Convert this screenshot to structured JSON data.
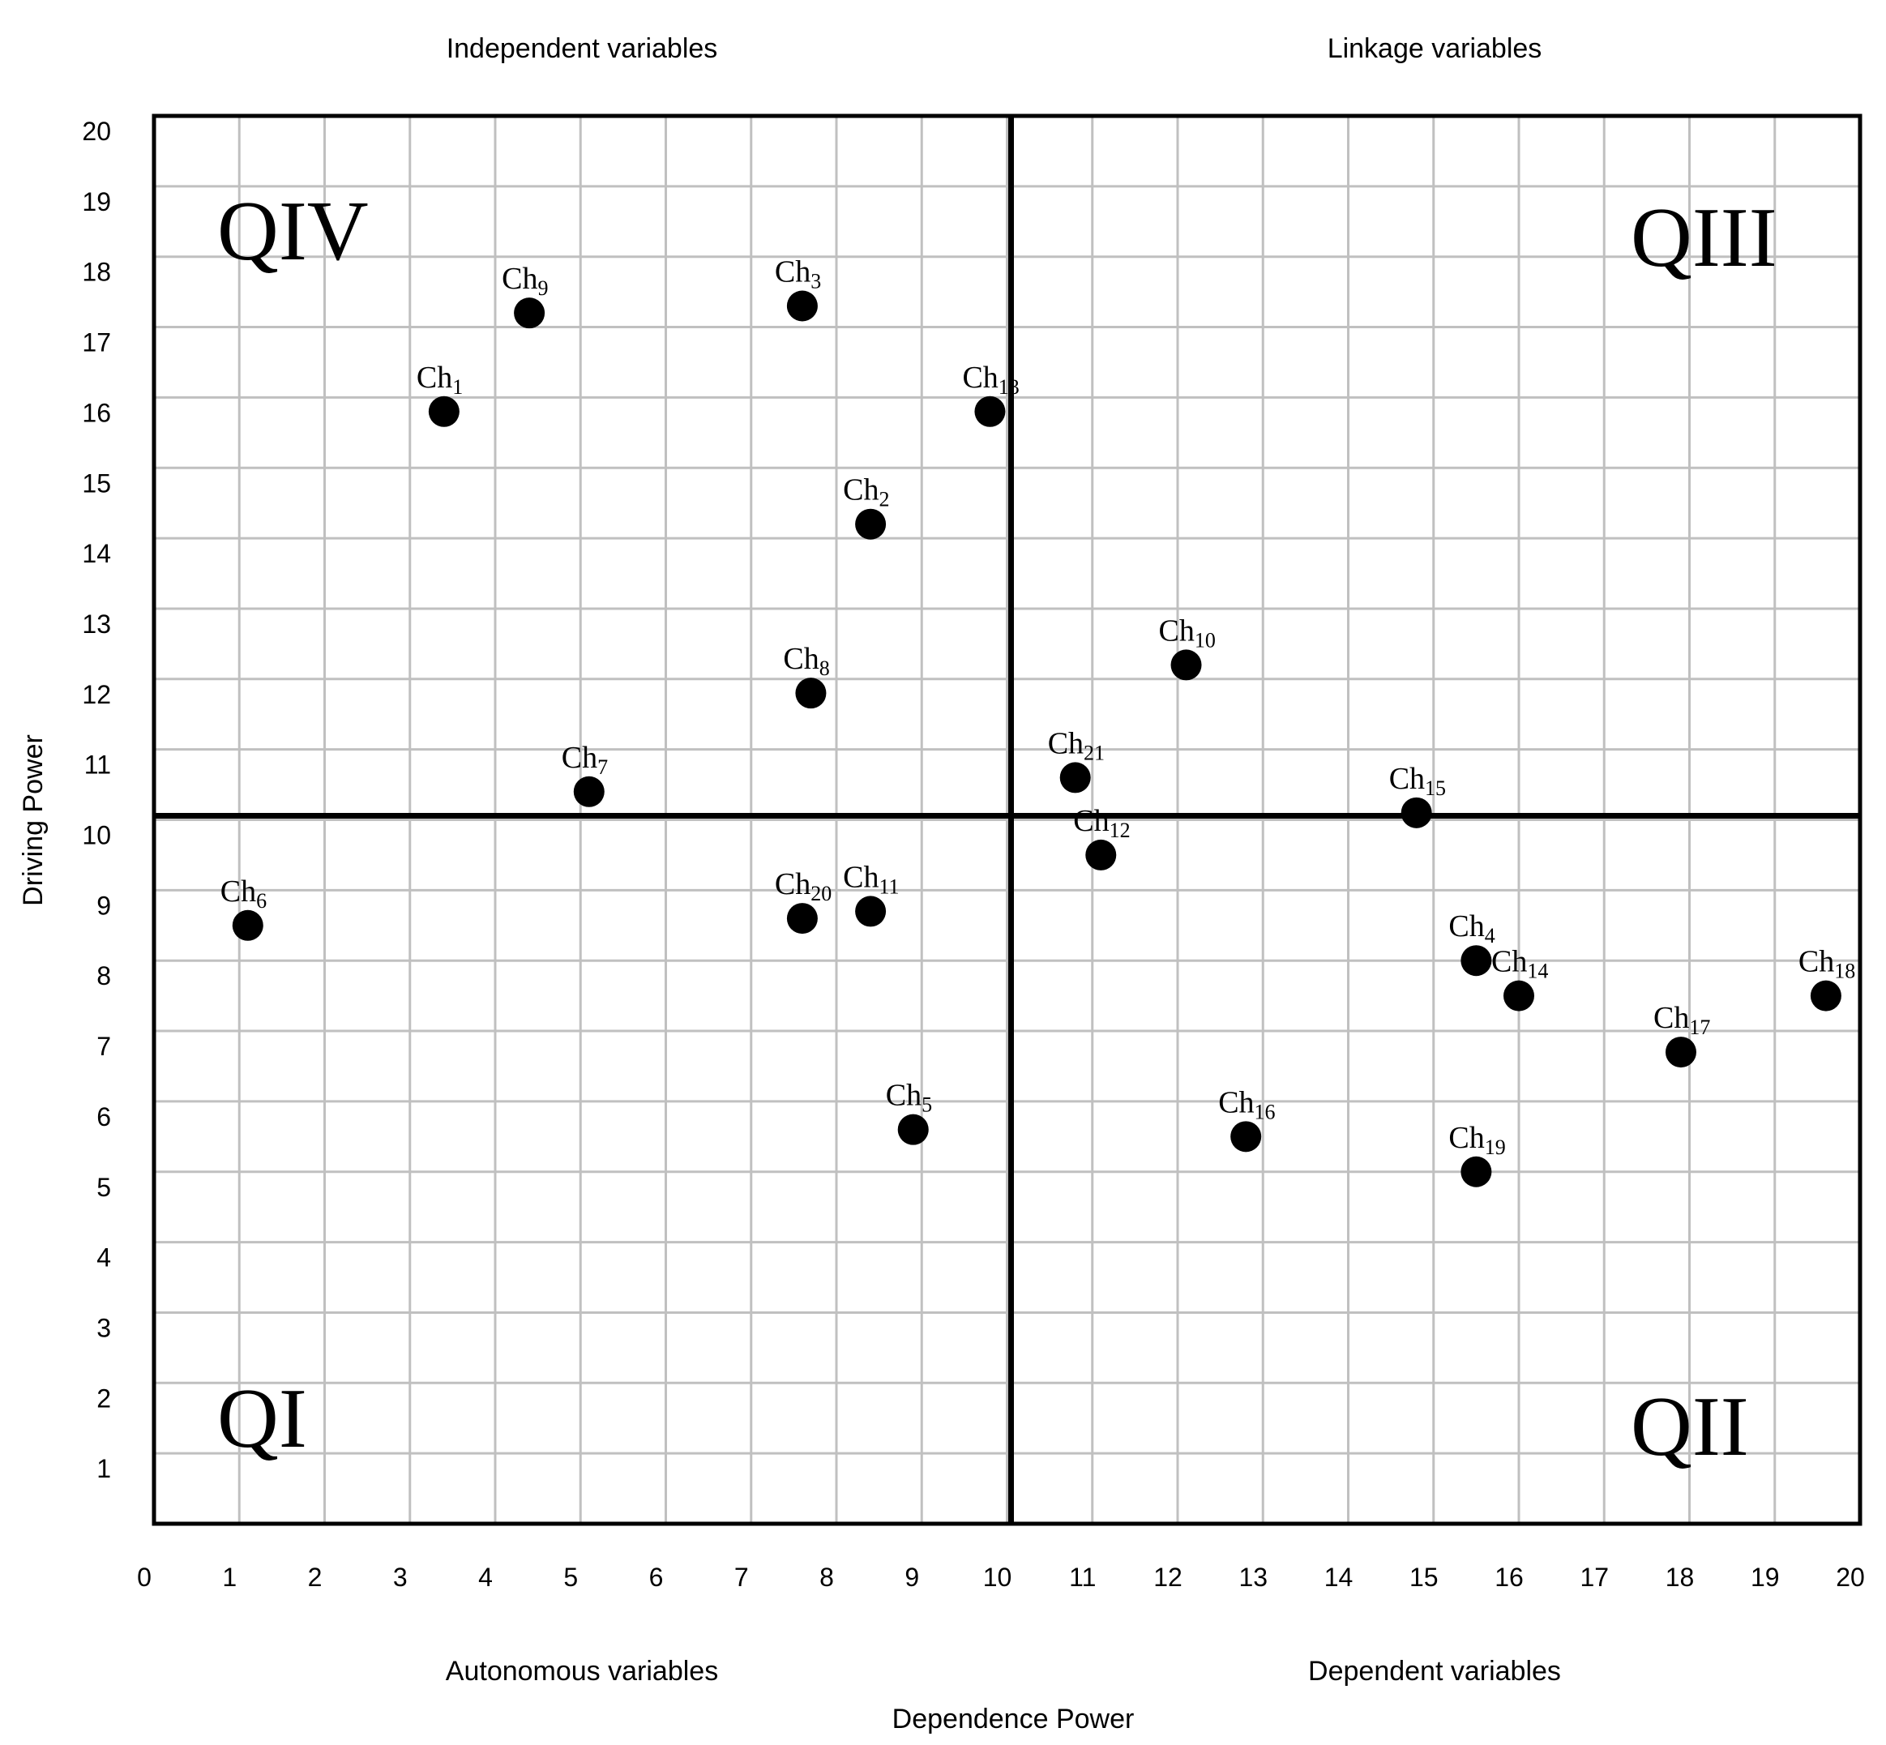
{
  "chart_data": {
    "type": "scatter",
    "xlabel": "Dependence Power",
    "ylabel": "Driving Power",
    "xlim": [
      0,
      20
    ],
    "ylim": [
      0,
      20
    ],
    "x_ticks": [
      "0",
      "1",
      "2",
      "3",
      "4",
      "5",
      "6",
      "7",
      "8",
      "9",
      "10",
      "11",
      "12",
      "13",
      "14",
      "15",
      "16",
      "17",
      "18",
      "19",
      "20"
    ],
    "y_ticks": [
      "1",
      "2",
      "3",
      "4",
      "5",
      "6",
      "7",
      "8",
      "9",
      "10",
      "11",
      "12",
      "13",
      "14",
      "15",
      "16",
      "17",
      "18",
      "19",
      "20"
    ],
    "grid": true,
    "divider": {
      "x": 10,
      "y": 10
    },
    "regions": {
      "top_left": "Independent variables",
      "top_right": "Linkage variables",
      "bottom_left": "Autonomous variables",
      "bottom_right": "Dependent variables"
    },
    "quadrants": {
      "QI": "QI",
      "QII": "QII",
      "QIII": "QIII",
      "QIV": "QIV"
    },
    "points": [
      {
        "base": "Ch",
        "sub": "1",
        "x": 3.4,
        "y": 15.8
      },
      {
        "base": "Ch",
        "sub": "2",
        "x": 8.4,
        "y": 14.2
      },
      {
        "base": "Ch",
        "sub": "3",
        "x": 7.6,
        "y": 17.3
      },
      {
        "base": "Ch",
        "sub": "4",
        "x": 15.5,
        "y": 8.0
      },
      {
        "base": "Ch",
        "sub": "5",
        "x": 8.9,
        "y": 5.6
      },
      {
        "base": "Ch",
        "sub": "6",
        "x": 1.1,
        "y": 8.5
      },
      {
        "base": "Ch",
        "sub": "7",
        "x": 5.1,
        "y": 10.4
      },
      {
        "base": "Ch",
        "sub": "8",
        "x": 7.7,
        "y": 11.8
      },
      {
        "base": "Ch",
        "sub": "9",
        "x": 4.4,
        "y": 17.2
      },
      {
        "base": "Ch",
        "sub": "10",
        "x": 12.1,
        "y": 12.2
      },
      {
        "base": "Ch",
        "sub": "11",
        "x": 8.4,
        "y": 8.7
      },
      {
        "base": "Ch",
        "sub": "12",
        "x": 11.1,
        "y": 9.5
      },
      {
        "base": "Ch",
        "sub": "13",
        "x": 9.8,
        "y": 15.8
      },
      {
        "base": "Ch",
        "sub": "14",
        "x": 16.0,
        "y": 7.5
      },
      {
        "base": "Ch",
        "sub": "15",
        "x": 14.8,
        "y": 10.1
      },
      {
        "base": "Ch",
        "sub": "16",
        "x": 12.8,
        "y": 5.5
      },
      {
        "base": "Ch",
        "sub": "17",
        "x": 17.9,
        "y": 6.7
      },
      {
        "base": "Ch",
        "sub": "18",
        "x": 19.6,
        "y": 7.5
      },
      {
        "base": "Ch",
        "sub": "19",
        "x": 15.5,
        "y": 5.0
      },
      {
        "base": "Ch",
        "sub": "20",
        "x": 7.6,
        "y": 8.6
      },
      {
        "base": "Ch",
        "sub": "21",
        "x": 10.8,
        "y": 10.6
      }
    ]
  }
}
